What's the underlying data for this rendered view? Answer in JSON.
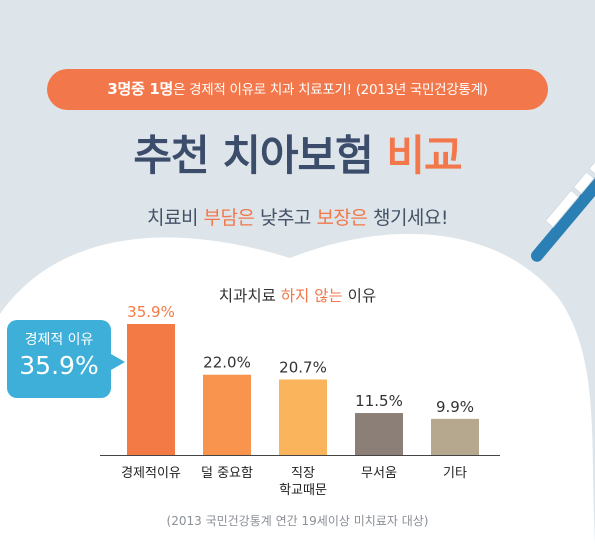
{
  "banner": {
    "highlight": "3명중 1명",
    "text": "은 경제적 이유로 치과 치료포기! (2013년 국민건강통계)"
  },
  "headline": {
    "main": "추천 치아보험 ",
    "accent": "비교"
  },
  "subheadline": {
    "p1": "치료비 ",
    "a1": "부담은",
    "p2": " 낮추고 ",
    "a2": "보장은",
    "p3": " 챙기세요!"
  },
  "callout": {
    "label": "경제적 이유",
    "value": "35.9%"
  },
  "chart_data": {
    "type": "bar",
    "title": "치과치료 하지 않는 이유",
    "title_parts": {
      "pre": "치과치료 ",
      "accent": "하지 않는",
      "post": " 이유"
    },
    "categories": [
      "경제적이유",
      "덜 중요함",
      "직장\n학교때문",
      "무서움",
      "기타"
    ],
    "values": [
      35.9,
      22.0,
      20.7,
      11.5,
      9.9
    ],
    "value_labels": [
      "35.9%",
      "22.0%",
      "20.7%",
      "11.5%",
      "9.9%"
    ],
    "colors": [
      "#f47a45",
      "#f8944d",
      "#f9b45c",
      "#8c7f78",
      "#b6a78f"
    ],
    "label_colors": [
      "#f47a45",
      "#333333",
      "#333333",
      "#333333",
      "#333333"
    ],
    "ylim": [
      0,
      35.9
    ],
    "xlabel": "",
    "ylabel": ""
  },
  "footnote": "(2013 국민건강통계 연간 19세이상 미치료자 대상)",
  "colors": {
    "accent": "#f2784b",
    "navy": "#3c4d6b",
    "callout": "#3dafd8",
    "background": "#dde5ea"
  }
}
